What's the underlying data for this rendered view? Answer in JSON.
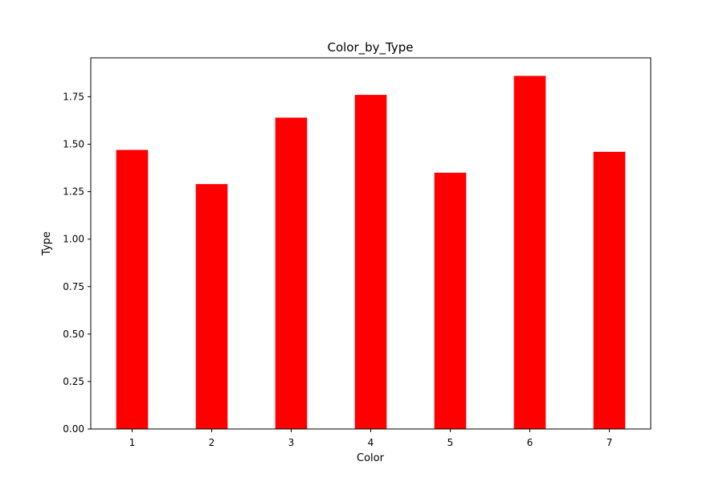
{
  "chart_data": {
    "type": "bar",
    "title": "Color_by_Type",
    "xlabel": "Color",
    "ylabel": "Type",
    "categories": [
      "1",
      "2",
      "3",
      "4",
      "5",
      "6",
      "7"
    ],
    "values": [
      1.47,
      1.29,
      1.64,
      1.76,
      1.35,
      1.86,
      1.46
    ],
    "ylim": [
      0,
      1.955
    ],
    "yticks": [
      "0.00",
      "0.25",
      "0.50",
      "0.75",
      "1.00",
      "1.25",
      "1.50",
      "1.75"
    ],
    "bar_color": "#ff0000",
    "grid": false,
    "legend": "none"
  }
}
